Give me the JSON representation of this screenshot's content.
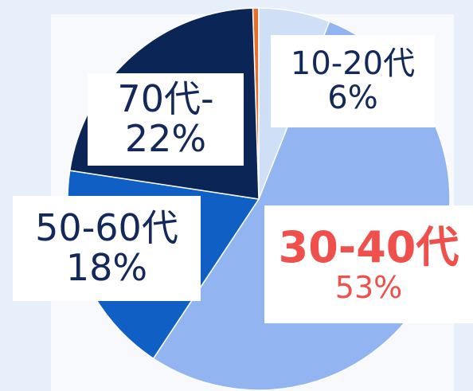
{
  "chart_data": {
    "type": "pie",
    "title": "",
    "slices": [
      {
        "label": "10-20代",
        "value": 6,
        "pct_text": "6%",
        "color": "#cfdff5"
      },
      {
        "label": "30-40代",
        "value": 53,
        "pct_text": "53%",
        "color": "#92b4f0"
      },
      {
        "label": "50-60代",
        "value": 18,
        "pct_text": "18%",
        "color": "#0f5fc4"
      },
      {
        "label": "70代-",
        "value": 22,
        "pct_text": "22%",
        "color": "#0a2556"
      },
      {
        "label": "",
        "value": 0.5,
        "pct_text": "",
        "color": "#e8702e"
      }
    ],
    "highlight": {
      "slice": "30-40代",
      "color": "#f0504c"
    }
  }
}
